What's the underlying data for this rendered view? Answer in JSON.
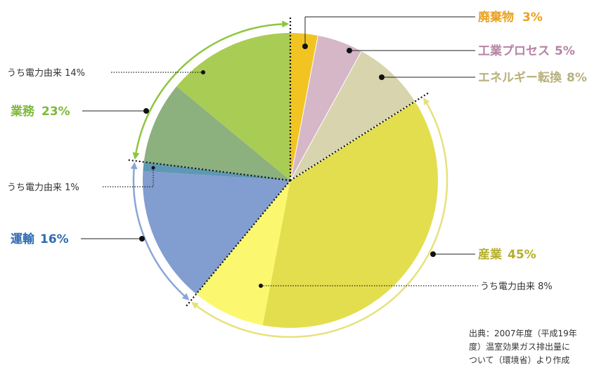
{
  "chart_data": {
    "type": "pie",
    "slices": [
      {
        "key": "waste",
        "label": "廃棄物",
        "value": 3,
        "color": "#f2c422",
        "label_color": "#eaa01e"
      },
      {
        "key": "industrial_process",
        "label": "工業プロセス",
        "value": 5,
        "color": "#d5b7c8",
        "label_color": "#b583a4"
      },
      {
        "key": "energy_conversion",
        "label": "エネルギー転換",
        "value": 8,
        "color": "#d7d4ae",
        "label_color": "#b8b07c"
      },
      {
        "key": "industry",
        "label": "産業",
        "value": 45,
        "color": "#e3de4e",
        "label_color": "#b5ae2a",
        "sub": {
          "label": "うち電力由来",
          "value": 8,
          "color": "#fbf86f"
        }
      },
      {
        "key": "transport",
        "label": "運輸",
        "value": 16,
        "color": "#829dd0",
        "label_color": "#2f6cb0",
        "sub": {
          "label": "うち電力由来",
          "value": 1,
          "color": "#5f98b4"
        }
      },
      {
        "key": "business",
        "label": "業務",
        "value": 23,
        "color": "#8cb07e",
        "label_color": "#7cba3a",
        "sub": {
          "label": "うち電力由来",
          "value": 14,
          "color": "#a9cc55"
        }
      }
    ]
  },
  "labels": {
    "waste": {
      "name": "廃棄物",
      "pct": "3%"
    },
    "industrial_process": {
      "name": "工業プロセス",
      "pct": "5%"
    },
    "energy_conversion": {
      "name": "エネルギー転換",
      "pct": "8%"
    },
    "industry": {
      "name": "産業",
      "pct": "45%"
    },
    "transport": {
      "name": "運輸",
      "pct": "16%"
    },
    "business": {
      "name": "業務",
      "pct": "23%"
    },
    "industry_sub": "うち電力由来 8%",
    "transport_sub": "うち電力由来 1%",
    "business_sub": "うち電力由来 14%"
  },
  "source": {
    "line1": "出典：2007年度（平成19年",
    "line2": "度）温室効果ガス排出量に",
    "line3": "ついて（環境省）より作成"
  }
}
